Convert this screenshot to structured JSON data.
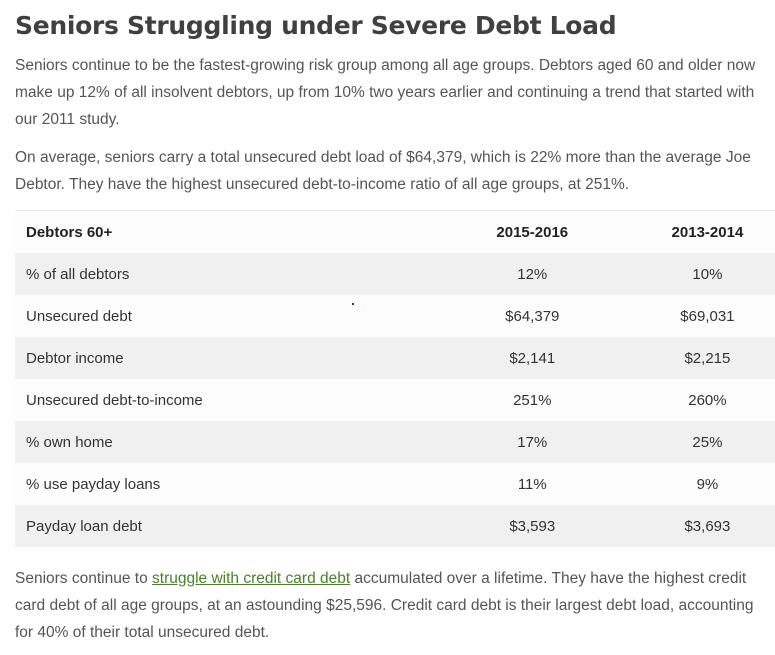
{
  "article": {
    "heading": "Seniors Struggling under Severe Debt Load",
    "paragraph1": "Seniors continue to be the fastest-growing risk group among all age groups. Debtors aged 60 and older now make up 12% of all insolvent debtors, up from 10% two years earlier and continuing a trend that started with our 2011 study.",
    "paragraph2": "On average, seniors carry a total unsecured debt load of $64,379, which is 22% more than the average Joe Debtor. They have the highest unsecured debt-to-income ratio of all age groups, at 251%.",
    "paragraph3": {
      "before_link": "Seniors continue to ",
      "link_text": "struggle with credit card debt",
      "after_link": " accumulated over a lifetime. They have the highest credit card debt of all age groups, at an astounding $25,596. Credit card debt is their largest debt load, accounting for 40% of their total unsecured debt."
    }
  },
  "table": {
    "headers": [
      "Debtors 60+",
      "2015-2016",
      "2013-2014"
    ],
    "rows": [
      [
        "% of all debtors",
        "12%",
        "10%"
      ],
      [
        "Unsecured debt",
        "$64,379",
        "$69,031"
      ],
      [
        "Debtor income",
        "$2,141",
        "$2,215"
      ],
      [
        "Unsecured debt-to-income",
        "251%",
        "260%"
      ],
      [
        "% own home",
        "17%",
        "25%"
      ],
      [
        "% use payday loans",
        "11%",
        "9%"
      ],
      [
        "Payday loan debt",
        "$3,593",
        "$3,693"
      ]
    ]
  },
  "colors": {
    "heading": "#404040",
    "body_text": "#555555",
    "link": "#4a7f2c",
    "row_stripe": "#f0f0f0",
    "row_light": "#fcfcfc"
  }
}
